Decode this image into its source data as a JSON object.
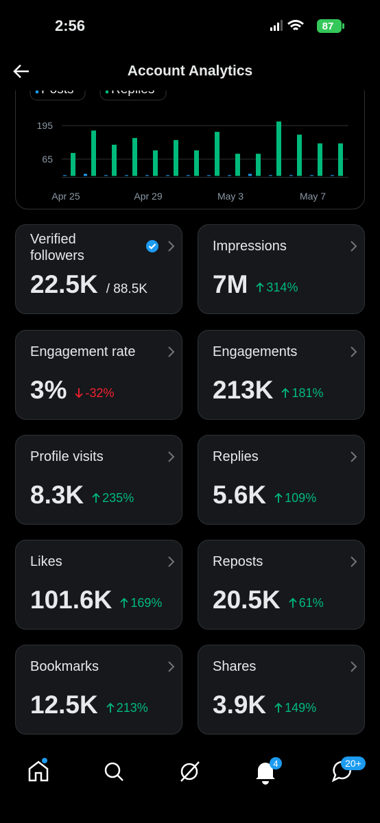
{
  "status_bar": {
    "time": "2:56",
    "battery": 87
  },
  "header": {
    "title": "Account Analytics"
  },
  "chart_data": {
    "type": "bar",
    "categories": [
      "Apr 25",
      null,
      null,
      null,
      "Apr 29",
      null,
      null,
      null,
      "May 3",
      null,
      null,
      null,
      "May 7",
      null
    ],
    "series": [
      {
        "name": "Posts",
        "color": "#1d9bf0",
        "values": [
          3,
          8,
          3,
          3,
          3,
          3,
          3,
          3,
          3,
          8,
          3,
          3,
          3,
          3
        ]
      },
      {
        "name": "Replies",
        "color": "#00ba7c",
        "values": [
          89,
          176,
          121,
          147,
          99,
          139,
          99,
          171,
          86,
          86,
          211,
          160,
          126,
          126
        ]
      }
    ],
    "ylim": [
      0,
      230
    ],
    "yticks": [
      65,
      195
    ],
    "grid": true
  },
  "metrics": [
    {
      "label": "Verified followers",
      "value": "22.5K",
      "total": "88.5K"
    },
    {
      "label": "Impressions",
      "value": "7M",
      "change": "314%",
      "direction": "up"
    },
    {
      "label": "Engagement rate",
      "value": "3%",
      "change": "-32%",
      "direction": "down"
    },
    {
      "label": "Engagements",
      "value": "213K",
      "change": "181%",
      "direction": "up"
    },
    {
      "label": "Profile visits",
      "value": "8.3K",
      "change": "235%",
      "direction": "up"
    },
    {
      "label": "Replies",
      "value": "5.6K",
      "change": "109%",
      "direction": "up"
    },
    {
      "label": "Likes",
      "value": "101.6K",
      "change": "169%",
      "direction": "up"
    },
    {
      "label": "Reposts",
      "value": "20.5K",
      "change": "61%",
      "direction": "up"
    },
    {
      "label": "Bookmarks",
      "value": "12.5K",
      "change": "213%",
      "direction": "up"
    },
    {
      "label": "Shares",
      "value": "3.9K",
      "change": "149%",
      "direction": "up"
    }
  ],
  "nav": {
    "notifications_badge": 4,
    "messages_badge": "20+"
  }
}
